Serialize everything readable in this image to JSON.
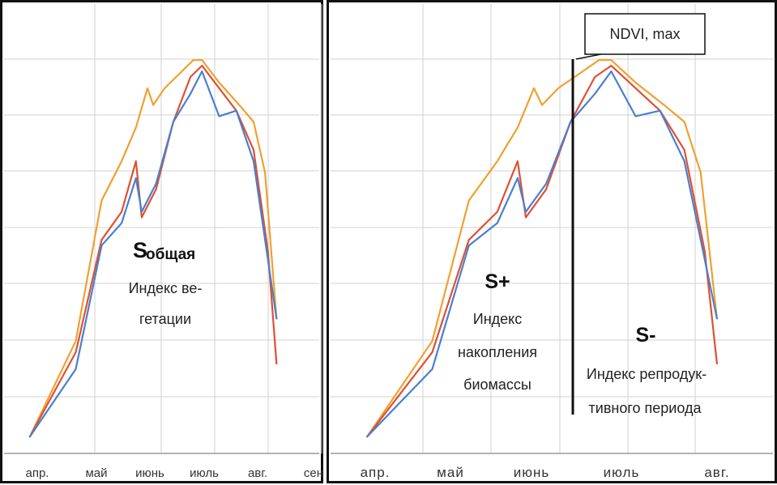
{
  "chart_data": [
    {
      "type": "line",
      "x_ticks": [
        "апр.",
        "май",
        "июнь",
        "июль",
        "авг.",
        "сен"
      ],
      "grid": true,
      "series": [
        {
          "color": "#f0a030",
          "points": [
            [
              0.9,
              0.3
            ],
            [
              2.5,
              2.0
            ],
            [
              3.4,
              4.5
            ],
            [
              4.1,
              5.2
            ],
            [
              4.6,
              5.8
            ],
            [
              5.0,
              6.5
            ],
            [
              5.2,
              6.2
            ],
            [
              5.6,
              6.5
            ],
            [
              6.2,
              6.8
            ],
            [
              6.6,
              7.0
            ],
            [
              6.9,
              7.0
            ],
            [
              7.5,
              6.6
            ],
            [
              8.2,
              6.2
            ],
            [
              8.7,
              5.9
            ],
            [
              9.1,
              5.0
            ],
            [
              9.5,
              2.4
            ]
          ]
        },
        {
          "color": "#e05030",
          "points": [
            [
              0.9,
              0.3
            ],
            [
              2.5,
              1.8
            ],
            [
              3.4,
              3.8
            ],
            [
              4.1,
              4.3
            ],
            [
              4.6,
              5.2
            ],
            [
              4.8,
              4.2
            ],
            [
              5.3,
              4.7
            ],
            [
              5.9,
              5.9
            ],
            [
              6.5,
              6.7
            ],
            [
              6.9,
              6.9
            ],
            [
              7.5,
              6.5
            ],
            [
              8.1,
              6.1
            ],
            [
              8.7,
              5.4
            ],
            [
              9.2,
              3.6
            ],
            [
              9.5,
              1.6
            ]
          ]
        },
        {
          "color": "#4a7fd0",
          "points": [
            [
              0.9,
              0.3
            ],
            [
              2.5,
              1.5
            ],
            [
              3.4,
              3.7
            ],
            [
              4.1,
              4.1
            ],
            [
              4.6,
              4.9
            ],
            [
              4.8,
              4.3
            ],
            [
              5.3,
              4.8
            ],
            [
              5.9,
              5.9
            ],
            [
              6.5,
              6.4
            ],
            [
              6.9,
              6.8
            ],
            [
              7.5,
              6.0
            ],
            [
              8.1,
              6.1
            ],
            [
              8.7,
              5.2
            ],
            [
              9.5,
              2.4
            ]
          ]
        }
      ],
      "annotations": {
        "s_letter": "S",
        "s_sub": "общая",
        "line1": "Индекс ве-",
        "line2": "гетации"
      }
    },
    {
      "type": "line",
      "x_ticks": [
        "апр.",
        "май",
        "июнь",
        "июль",
        "авг."
      ],
      "grid": true,
      "callout": "NDVI, max",
      "series": [
        {
          "color": "#f0a030",
          "points": [
            [
              0.9,
              0.3
            ],
            [
              2.5,
              2.0
            ],
            [
              3.4,
              4.5
            ],
            [
              4.1,
              5.2
            ],
            [
              4.6,
              5.8
            ],
            [
              5.0,
              6.5
            ],
            [
              5.2,
              6.2
            ],
            [
              5.6,
              6.5
            ],
            [
              6.2,
              6.8
            ],
            [
              6.6,
              7.0
            ],
            [
              6.9,
              7.0
            ],
            [
              7.5,
              6.6
            ],
            [
              8.2,
              6.2
            ],
            [
              8.7,
              5.9
            ],
            [
              9.1,
              5.0
            ],
            [
              9.5,
              2.4
            ]
          ]
        },
        {
          "color": "#e05030",
          "points": [
            [
              0.9,
              0.3
            ],
            [
              2.5,
              1.8
            ],
            [
              3.4,
              3.8
            ],
            [
              4.1,
              4.3
            ],
            [
              4.6,
              5.2
            ],
            [
              4.8,
              4.2
            ],
            [
              5.3,
              4.7
            ],
            [
              5.9,
              5.9
            ],
            [
              6.5,
              6.7
            ],
            [
              6.9,
              6.9
            ],
            [
              7.5,
              6.5
            ],
            [
              8.1,
              6.1
            ],
            [
              8.7,
              5.4
            ],
            [
              9.2,
              3.6
            ],
            [
              9.5,
              1.6
            ]
          ]
        },
        {
          "color": "#4a7fd0",
          "points": [
            [
              0.9,
              0.3
            ],
            [
              2.5,
              1.5
            ],
            [
              3.4,
              3.7
            ],
            [
              4.1,
              4.1
            ],
            [
              4.6,
              4.9
            ],
            [
              4.8,
              4.3
            ],
            [
              5.3,
              4.8
            ],
            [
              5.9,
              5.9
            ],
            [
              6.5,
              6.4
            ],
            [
              6.9,
              6.8
            ],
            [
              7.5,
              6.0
            ],
            [
              8.1,
              6.1
            ],
            [
              8.7,
              5.2
            ],
            [
              9.5,
              2.4
            ]
          ]
        }
      ],
      "annotations": {
        "s_plus": "S+",
        "plus_1": "Индекс",
        "plus_2": "накопления",
        "plus_3": "биомассы",
        "s_minus": "S-",
        "minus_1": "Индекс репродук-",
        "minus_2": "тивного периода"
      }
    }
  ]
}
